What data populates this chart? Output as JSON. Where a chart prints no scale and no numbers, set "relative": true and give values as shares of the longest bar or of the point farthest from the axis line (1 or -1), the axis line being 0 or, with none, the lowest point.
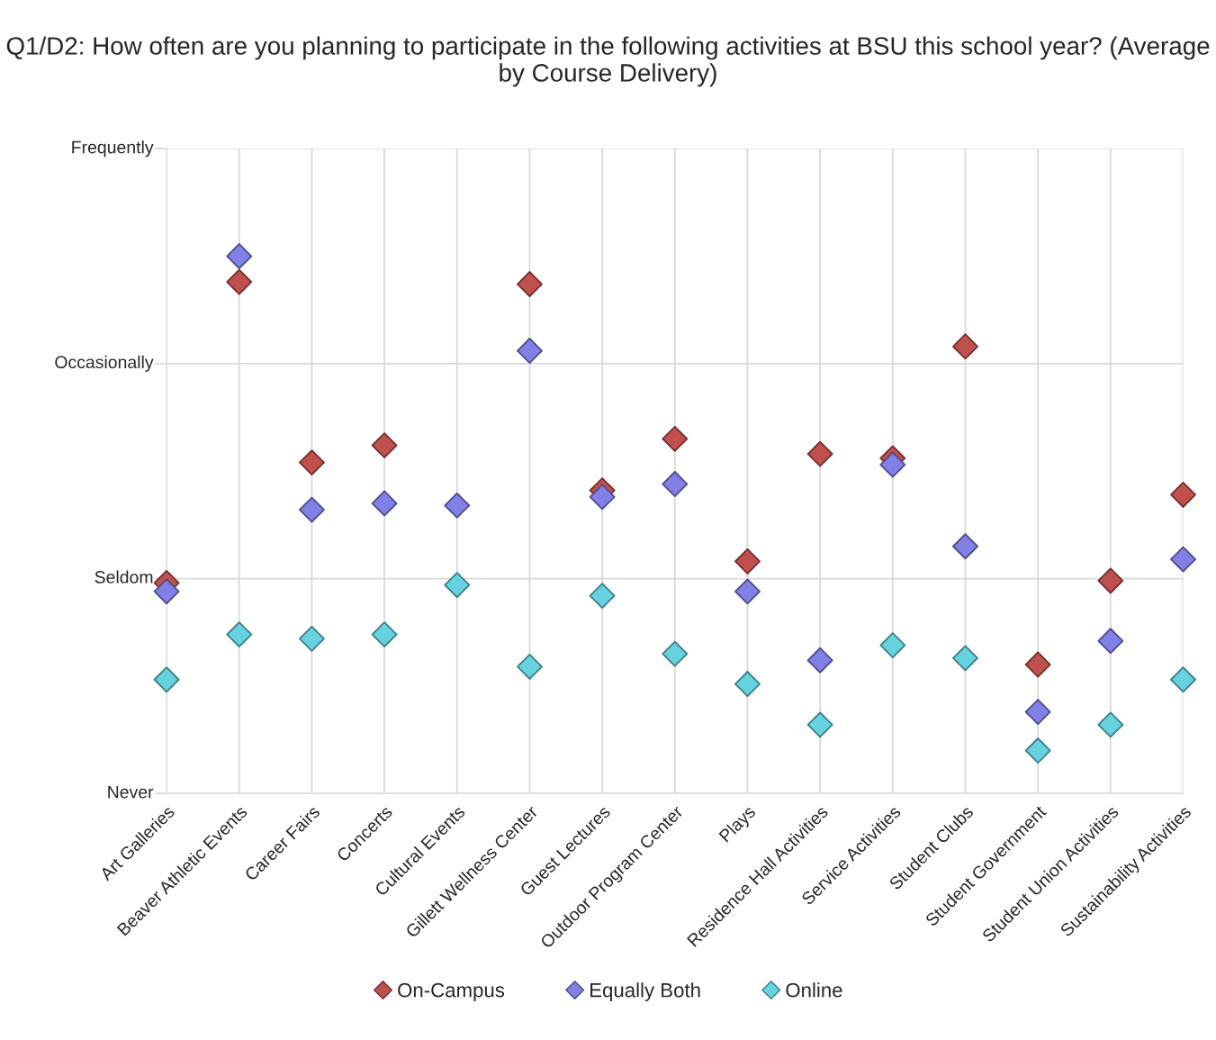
{
  "chart_data": {
    "type": "scatter",
    "title": "Q1/D2: How often are you planning to participate in the following activities at BSU this school year? (Average by Course Delivery)",
    "categories": [
      "Art Galleries",
      "Beaver Athletic Events",
      "Career Fairs",
      "Concerts",
      "Cultural Events",
      "Gillett Wellness Center",
      "Guest Lectures",
      "Outdoor Program Center",
      "Plays",
      "Residence Hall Activities",
      "Service Activities",
      "Student Clubs",
      "Student Government",
      "Student Union Activities",
      "Sustainability Activities"
    ],
    "relative": true,
    "series": [
      {
        "name": "On-Campus",
        "color": "#c0504d",
        "values": [
          0.392,
          0.952,
          0.616,
          0.648,
          null,
          0.948,
          0.564,
          0.66,
          0.432,
          0.632,
          0.624,
          0.832,
          0.24,
          0.396,
          0.556
        ]
      },
      {
        "name": "Equally Both",
        "color": "#8080e6",
        "values": [
          0.376,
          1.0,
          0.528,
          0.54,
          0.536,
          0.824,
          0.552,
          0.576,
          0.376,
          0.248,
          0.612,
          0.46,
          0.152,
          0.284,
          0.436
        ]
      },
      {
        "name": "Online",
        "color": "#66d2e0",
        "values": [
          0.212,
          0.296,
          0.288,
          0.296,
          0.388,
          0.236,
          0.368,
          0.26,
          0.204,
          0.128,
          0.276,
          0.252,
          0.08,
          0.128,
          0.212
        ]
      }
    ],
    "ref_lines": [
      {
        "axis": "y",
        "value": 0,
        "label": "Never"
      },
      {
        "axis": "y",
        "value": 0.4,
        "label": "Seldom"
      },
      {
        "axis": "y",
        "value": 0.8,
        "label": "Occasionally"
      },
      {
        "axis": "y",
        "value": 1.2,
        "label": "Frequently"
      }
    ],
    "grid": "x",
    "legend": "bottom",
    "marker": "diamond"
  }
}
